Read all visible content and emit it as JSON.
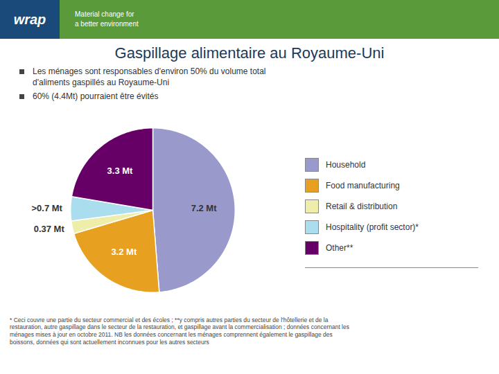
{
  "chart_data": {
    "type": "pie",
    "title": "Gaspillage alimentaire au Royaume-Uni",
    "categories": [
      "Household",
      "Food manufacturing",
      "Retail & distribution",
      "Hospitality (profit sector)*",
      "Other**"
    ],
    "values": [
      7.2,
      3.2,
      0.37,
      0.7,
      3.3
    ],
    "value_labels": [
      "7.2 Mt",
      "3.2 Mt",
      "0.37 Mt",
      ">0.7 Mt",
      "3.3 Mt"
    ],
    "colors": [
      "#9999cc",
      "#e8a020",
      "#eeeeaa",
      "#aaddee",
      "#660066"
    ],
    "data_labels": true,
    "legend": "right",
    "annotations": [
      "wrap",
      "Material change for",
      "a better environment",
      "Les ménages sont responsables d'environ 50% du volume total\nd'aliments gaspillés au Royaume-Uni",
      "60% (4.4Mt) pourraient être évités",
      "* Ceci couvre une partie du secteur commercial et des écoles ; **y compris autres parties du secteur de l'hôtellerie et de la\nrestauration, autre gaspillage dans le secteur de la restauration, et gaspillage avant la commercialisation ; données concernant les\nménages mises à jour en octobre 2011. NB les données concernant les ménages comprennent également le gaspillage des\nboissons, données qui sont actuellement inconnues pour les autres secteurs"
    ]
  }
}
